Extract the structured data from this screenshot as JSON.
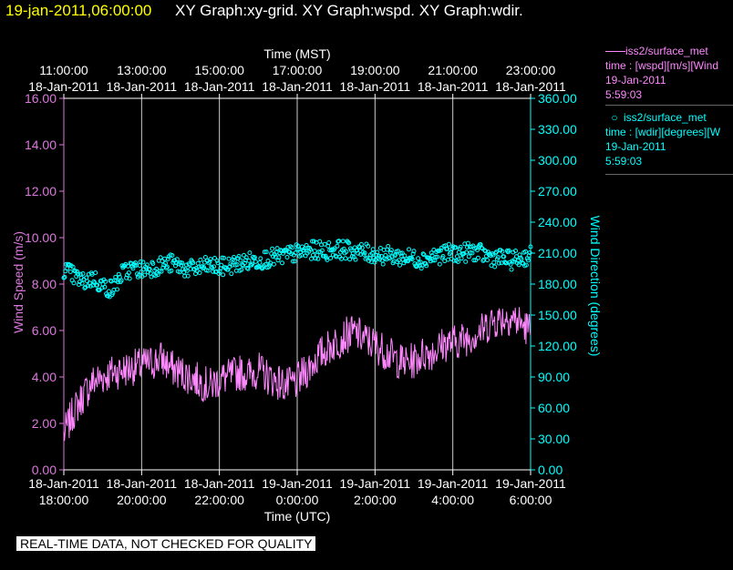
{
  "header": {
    "timestamp": "19-jan-2011,06:00:00",
    "graph_titles": "XY Graph:xy-grid.  XY Graph:wspd.  XY Graph:wdir."
  },
  "legend": {
    "wspd": {
      "line1": "iss2/surface_met",
      "line2": "time : [wspd][m/s][Wind",
      "line3": "19-Jan-2011",
      "line4": "5:59:03",
      "color": "#ff88ff"
    },
    "wdir": {
      "line1": "iss2/surface_met",
      "line2": "time : [wdir][degrees][W",
      "line3": "19-Jan-2011",
      "line4": "5:59:03",
      "color": "#00ffff"
    }
  },
  "footer": {
    "warning": "REAL-TIME DATA, NOT CHECKED FOR QUALITY"
  },
  "chart_data": {
    "type": "line",
    "top_axis": {
      "label": "Time (MST)",
      "ticks": [
        {
          "time": "11:00:00",
          "date": "18-Jan-2011"
        },
        {
          "time": "13:00:00",
          "date": "18-Jan-2011"
        },
        {
          "time": "15:00:00",
          "date": "18-Jan-2011"
        },
        {
          "time": "17:00:00",
          "date": "18-Jan-2011"
        },
        {
          "time": "19:00:00",
          "date": "18-Jan-2011"
        },
        {
          "time": "21:00:00",
          "date": "18-Jan-2011"
        },
        {
          "time": "23:00:00",
          "date": "18-Jan-2011"
        }
      ]
    },
    "bottom_axis": {
      "label": "Time (UTC)",
      "range": [
        "18-Jan-2011 18:00",
        "19-Jan-2011 06:00"
      ],
      "ticks": [
        {
          "date": "18-Jan-2011",
          "time": "18:00:00"
        },
        {
          "date": "18-Jan-2011",
          "time": "20:00:00"
        },
        {
          "date": "18-Jan-2011",
          "time": "22:00:00"
        },
        {
          "date": "19-Jan-2011",
          "time": "0:00:00"
        },
        {
          "date": "19-Jan-2011",
          "time": "2:00:00"
        },
        {
          "date": "19-Jan-2011",
          "time": "4:00:00"
        },
        {
          "date": "19-Jan-2011",
          "time": "6:00:00"
        }
      ]
    },
    "left_axis": {
      "label": "Wind Speed (m/s)",
      "range": [
        0,
        16
      ],
      "ticks": [
        "0.00",
        "2.00",
        "4.00",
        "6.00",
        "8.00",
        "10.00",
        "12.00",
        "14.00",
        "16.00"
      ],
      "color": "#dd77dd"
    },
    "right_axis": {
      "label": "Wind Direction (degrees)",
      "range": [
        0,
        360
      ],
      "ticks": [
        "0.00",
        "30.00",
        "60.00",
        "90.00",
        "120.00",
        "150.00",
        "180.00",
        "210.00",
        "240.00",
        "270.00",
        "300.00",
        "330.00",
        "360.00"
      ],
      "color": "#00ffff"
    },
    "grid": "vertical",
    "series": [
      {
        "axis": "left",
        "style": "line",
        "color": "#ff88ff",
        "x_hours_utc": [
          18.0,
          18.25,
          18.5,
          18.75,
          19.0,
          19.25,
          19.5,
          19.75,
          20.0,
          20.25,
          20.5,
          20.75,
          21.0,
          21.25,
          21.5,
          21.75,
          22.0,
          22.25,
          22.5,
          22.75,
          23.0,
          23.25,
          23.5,
          23.75,
          24.0,
          24.25,
          24.5,
          24.75,
          25.0,
          25.25,
          25.5,
          25.75,
          26.0,
          26.25,
          26.5,
          26.75,
          27.0,
          27.25,
          27.5,
          27.75,
          28.0,
          28.25,
          28.5,
          28.75,
          29.0,
          29.25,
          29.5,
          29.75,
          30.0
        ],
        "values": [
          1.5,
          2.5,
          3.2,
          3.8,
          4.0,
          4.2,
          4.3,
          4.4,
          4.5,
          4.6,
          4.8,
          4.4,
          4.2,
          4.0,
          3.8,
          3.6,
          3.9,
          4.0,
          4.2,
          4.1,
          4.3,
          4.0,
          3.8,
          3.6,
          3.8,
          4.3,
          4.8,
          5.2,
          5.5,
          5.8,
          5.9,
          5.6,
          5.4,
          5.1,
          4.8,
          4.6,
          4.7,
          5.0,
          5.1,
          5.4,
          5.5,
          5.6,
          5.8,
          6.0,
          6.4,
          6.5,
          6.6,
          6.3,
          6.0
        ]
      },
      {
        "axis": "right",
        "style": "markers",
        "color": "#00ffff",
        "x_hours_utc": [
          18.0,
          18.25,
          18.5,
          18.75,
          19.0,
          19.25,
          19.5,
          19.75,
          20.0,
          20.25,
          20.5,
          20.75,
          21.0,
          21.25,
          21.5,
          21.75,
          22.0,
          22.25,
          22.5,
          22.75,
          23.0,
          23.25,
          23.5,
          23.75,
          24.0,
          24.25,
          24.5,
          24.75,
          25.0,
          25.25,
          25.5,
          25.75,
          26.0,
          26.25,
          26.5,
          26.75,
          27.0,
          27.25,
          27.5,
          27.75,
          28.0,
          28.25,
          28.5,
          28.75,
          29.0,
          29.25,
          29.5,
          29.75,
          30.0
        ],
        "values": [
          195,
          188,
          182,
          186,
          178,
          175,
          190,
          195,
          194,
          196,
          198,
          200,
          197,
          194,
          196,
          198,
          196,
          198,
          200,
          202,
          203,
          205,
          206,
          208,
          210,
          212,
          213,
          212,
          214,
          213,
          212,
          210,
          209,
          208,
          207,
          206,
          205,
          204,
          207,
          209,
          210,
          210,
          212,
          209,
          206,
          205,
          203,
          205,
          208
        ]
      }
    ]
  }
}
